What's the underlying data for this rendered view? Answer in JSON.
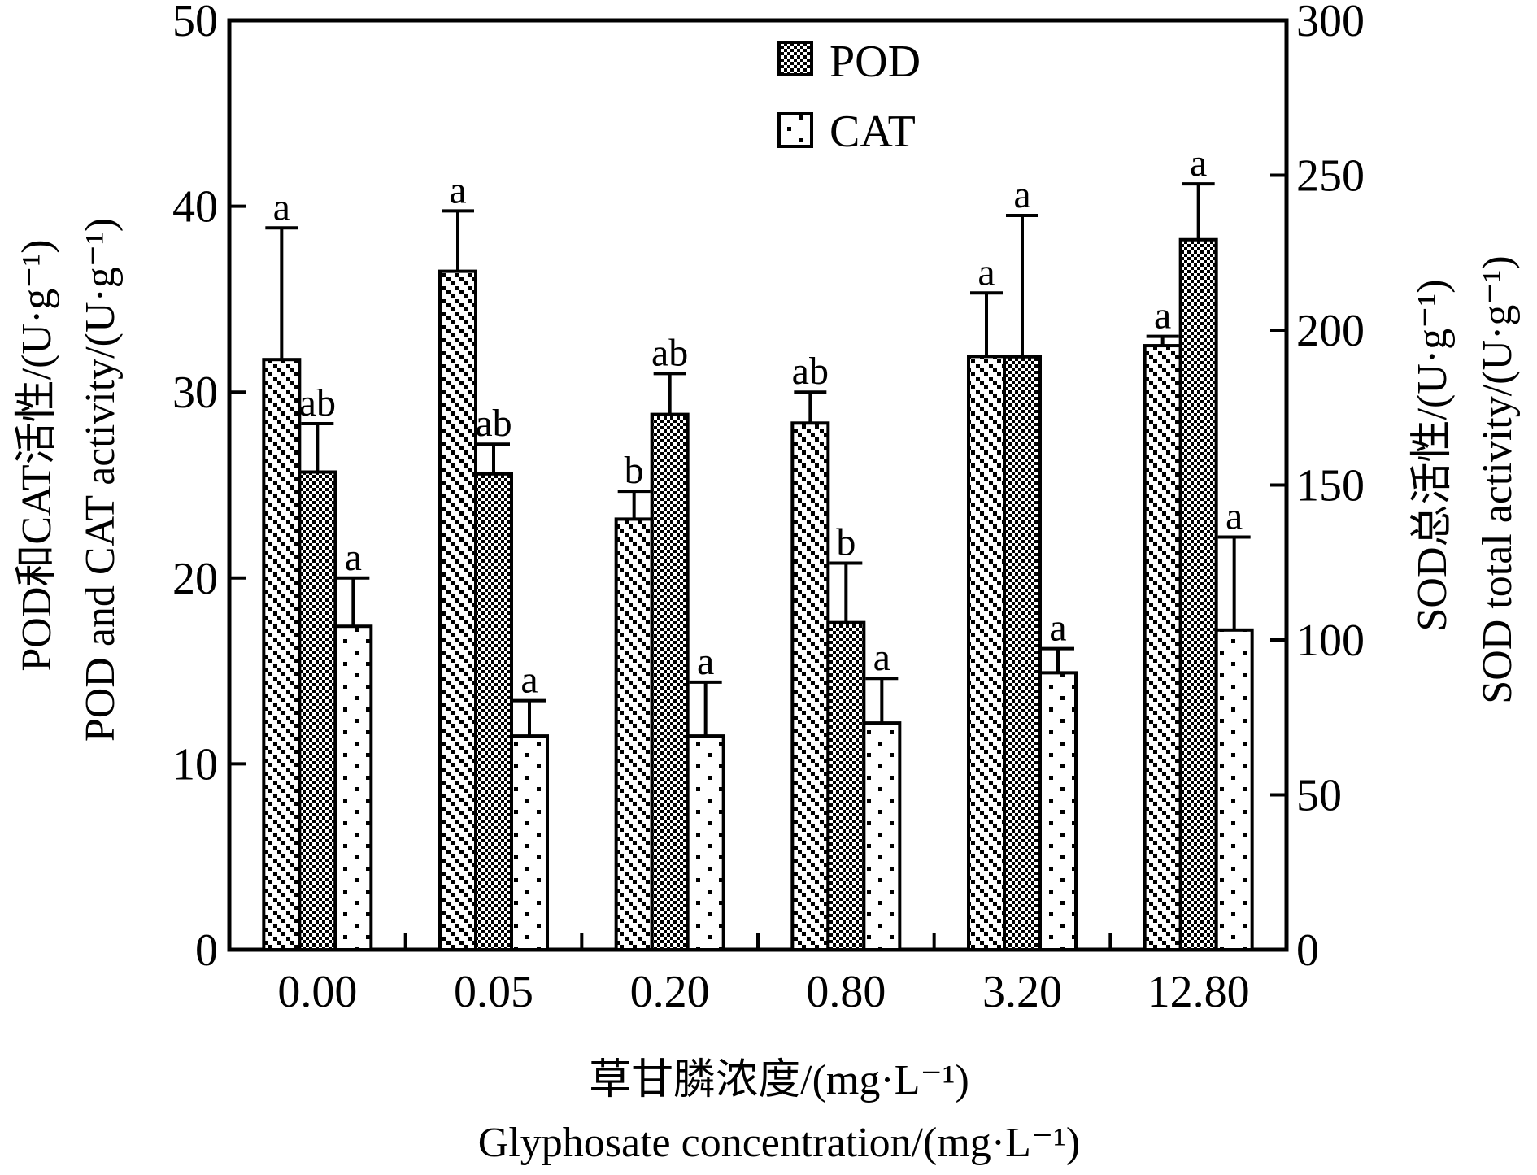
{
  "chart_data": {
    "type": "bar",
    "categories": [
      "0.00",
      "0.05",
      "0.20",
      "0.80",
      "3.20",
      "12.80"
    ],
    "series": [
      {
        "label": "",
        "axis": "right",
        "values": [
          190.5,
          219,
          139,
          170,
          191.5,
          195
        ],
        "errors": [
          42.5,
          19.5,
          9,
          10,
          20.5,
          3
        ],
        "letters": [
          "a",
          "a",
          "b",
          "ab",
          "a",
          "a"
        ],
        "pattern": "hatch"
      },
      {
        "name": "POD",
        "axis": "left",
        "values": [
          25.7,
          25.6,
          28.8,
          17.6,
          31.9,
          38.2
        ],
        "errors": [
          2.6,
          1.6,
          2.2,
          3.2,
          7.6,
          3.0
        ],
        "letters": [
          "ab",
          "ab",
          "ab",
          "b",
          "a",
          "a"
        ],
        "pattern": "checker"
      },
      {
        "name": "CAT",
        "axis": "left",
        "values": [
          17.4,
          11.5,
          11.5,
          12.2,
          14.9,
          17.2
        ],
        "errors": [
          2.6,
          1.9,
          2.9,
          2.4,
          1.3,
          5.0
        ],
        "letters": [
          "a",
          "a",
          "a",
          "a",
          "a",
          "a"
        ],
        "pattern": "sparse"
      }
    ],
    "left_axis": {
      "label_cn": "POD和CAT活性/(U·g⁻¹)",
      "label_en": "POD and CAT activity/(U·g⁻¹)",
      "ylim": [
        0,
        50
      ],
      "ticks": [
        "0",
        "10",
        "20",
        "30",
        "40",
        "50"
      ]
    },
    "right_axis": {
      "label_cn": "SOD总活性/(U·g⁻¹)",
      "label_en": "SOD total activity/(U·g⁻¹)",
      "ylim": [
        0,
        300
      ],
      "ticks": [
        "0",
        "50",
        "100",
        "150",
        "200",
        "250",
        "300"
      ]
    },
    "xlabel_cn": "草甘膦浓度/(mg·L⁻¹)",
    "xlabel_en": "Glyphosate concentration/(mg·L⁻¹)",
    "legend": {
      "placement": "top-center",
      "entries": [
        "POD",
        "CAT"
      ]
    },
    "grid": false
  }
}
